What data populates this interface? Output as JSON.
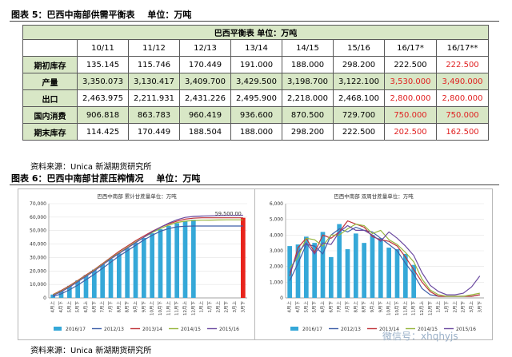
{
  "fig5": {
    "caption": "图表 5：巴西中南部供需平衡表",
    "unit": "单位：万吨",
    "table_title": "巴西平衡表  单位：万吨",
    "columns": [
      "",
      "10/11",
      "11/12",
      "12/13",
      "13/14",
      "14/15",
      "15/16",
      "16/17*",
      "16/17**"
    ],
    "rows": [
      {
        "label": "期初库存",
        "cells": [
          "135.145",
          "115.746",
          "170.449",
          "191.000",
          "188.000",
          "298.200",
          "222.500",
          "222.500"
        ],
        "red": [
          7
        ]
      },
      {
        "label": "产量",
        "cells": [
          "3,350.073",
          "3,130.417",
          "3,409.700",
          "3,429.500",
          "3,198.700",
          "3,122.100",
          "3,530.000",
          "3,490.000"
        ],
        "red": [
          6,
          7
        ]
      },
      {
        "label": "出口",
        "cells": [
          "2,463.975",
          "2,211.931",
          "2,431.226",
          "2,495.900",
          "2,218.000",
          "2,468.100",
          "2,800.000",
          "2,800.000"
        ],
        "red": [
          6,
          7
        ]
      },
      {
        "label": "国内消费",
        "cells": [
          "906.818",
          "863.783",
          "960.419",
          "936.600",
          "870.500",
          "729.700",
          "750.000",
          "750.000"
        ],
        "red": [
          6,
          7
        ]
      },
      {
        "label": "期末库存",
        "cells": [
          "114.425",
          "170.449",
          "188.504",
          "188.000",
          "298.200",
          "222.500",
          "202.500",
          "162.500"
        ],
        "red": [
          6,
          7
        ]
      }
    ],
    "source": "资料来源：Unica   新湖期货研究所"
  },
  "fig6": {
    "caption": "图表 6：巴西中南部甘蔗压榨情况",
    "unit": "单位：万吨",
    "source": "资料来源：Unica   新湖期货研究所"
  },
  "colors": {
    "bar": "#35a8d8",
    "s1213": "#3e5fa8",
    "s1314": "#c0343a",
    "s1415": "#96b63d",
    "s1516": "#6b4aa0",
    "highlight": "#e8241c"
  },
  "chart_data": [
    {
      "type": "bar",
      "title": "巴西中南部 累计甘蔗量单位：万吨",
      "categories": [
        "4月上",
        "4月下",
        "5月上",
        "5月下",
        "6月上",
        "6月下",
        "7月上",
        "7月下",
        "8月上",
        "8月下",
        "9月上",
        "9月下",
        "10月上",
        "10月下",
        "11月上",
        "11月下",
        "12月上",
        "12月下",
        "1月上",
        "1月下",
        "2月上",
        "2月下",
        "3月上",
        "3月下"
      ],
      "ylim": [
        0,
        70000
      ],
      "yticks": [
        "0",
        "10,000",
        "20,000",
        "30,000",
        "40,000",
        "50,000",
        "60,000",
        "70,000"
      ],
      "annotation": "59,500.00",
      "series": [
        {
          "name": "2016/17",
          "kind": "bar",
          "values": [
            2500,
            5500,
            9000,
            13000,
            17000,
            21000,
            25000,
            29000,
            33000,
            37000,
            41000,
            44500,
            48000,
            51000,
            53500,
            55500,
            57000,
            58000,
            null,
            null,
            null,
            null,
            null,
            59500
          ]
        },
        {
          "name": "2012/13",
          "kind": "line",
          "values": [
            1000,
            3000,
            6000,
            9500,
            13500,
            17500,
            22000,
            26500,
            31000,
            35000,
            39000,
            43000,
            46500,
            49500,
            51500,
            52800,
            53200,
            53400,
            53400,
            53400,
            53400,
            53400,
            53400,
            53400
          ]
        },
        {
          "name": "2013/14",
          "kind": "line",
          "values": [
            2500,
            5500,
            9000,
            13000,
            17000,
            21000,
            25500,
            30000,
            34500,
            38500,
            42500,
            46000,
            49500,
            52500,
            55000,
            57000,
            58500,
            59200,
            59500,
            59500,
            59500,
            59500,
            59500,
            59500
          ]
        },
        {
          "name": "2014/15",
          "kind": "line",
          "values": [
            2200,
            5000,
            8500,
            12500,
            16500,
            20500,
            25000,
            29500,
            33500,
            37500,
            41500,
            45000,
            48500,
            51500,
            54000,
            56000,
            57000,
            57500,
            57700,
            57800,
            57900,
            58000,
            58000,
            58000
          ]
        },
        {
          "name": "2015/16",
          "kind": "line",
          "values": [
            1800,
            4500,
            8000,
            12000,
            16000,
            20000,
            24500,
            29000,
            33000,
            37000,
            41000,
            45000,
            49000,
            52500,
            55500,
            58000,
            59800,
            60500,
            60800,
            61000,
            61200,
            61300,
            61300,
            61400
          ]
        }
      ],
      "legend": [
        "2016/17",
        "2012/13",
        "2013/14",
        "2014/15",
        "2015/16"
      ]
    },
    {
      "type": "bar",
      "title": "巴西中南部 双周甘蔗量单位：万吨",
      "categories": [
        "4月上",
        "4月下",
        "5月上",
        "5月下",
        "6月上",
        "6月下",
        "7月上",
        "7月下",
        "8月上",
        "8月下",
        "9月上",
        "9月下",
        "10月上",
        "10月下",
        "11月上",
        "11月下",
        "12月上",
        "12月下",
        "1月上",
        "1月下",
        "2月上",
        "2月下",
        "3月上",
        "3月下"
      ],
      "ylim": [
        0,
        6000
      ],
      "yticks": [
        "0",
        "1,000",
        "2,000",
        "3,000",
        "4,000",
        "5,000",
        "6,000"
      ],
      "series": [
        {
          "name": "2016/17",
          "kind": "bar",
          "values": [
            3300,
            3400,
            3900,
            3500,
            4200,
            2600,
            4700,
            3100,
            4100,
            3500,
            4000,
            3800,
            3200,
            3100,
            2800,
            2100,
            null,
            null,
            null,
            null,
            null,
            null,
            null,
            null
          ]
        },
        {
          "name": "2012/13",
          "kind": "line",
          "values": [
            1100,
            2200,
            3400,
            3300,
            2800,
            4000,
            4400,
            4200,
            4500,
            4300,
            4200,
            3800,
            3400,
            3000,
            2200,
            1500,
            600,
            200,
            100,
            100,
            100,
            100,
            100,
            200
          ]
        },
        {
          "name": "2013/14",
          "kind": "line",
          "values": [
            1400,
            3200,
            3800,
            2900,
            4000,
            3800,
            4200,
            4900,
            4700,
            4500,
            3900,
            3700,
            3600,
            3300,
            2600,
            1800,
            1000,
            400,
            100,
            100,
            100,
            100,
            100,
            200
          ]
        },
        {
          "name": "2014/15",
          "kind": "line",
          "values": [
            1900,
            2600,
            3800,
            3700,
            3300,
            4000,
            4000,
            4400,
            4700,
            4600,
            4100,
            4300,
            3700,
            3400,
            2900,
            2300,
            1200,
            500,
            200,
            100,
            100,
            100,
            200,
            300
          ]
        },
        {
          "name": "2015/16",
          "kind": "line",
          "values": [
            1600,
            2900,
            3500,
            2800,
            3500,
            3400,
            4200,
            4600,
            4300,
            4300,
            4000,
            3600,
            4200,
            3800,
            3300,
            2700,
            1600,
            800,
            400,
            200,
            200,
            300,
            700,
            1400
          ]
        }
      ],
      "legend": [
        "2016/17",
        "2012/13",
        "2013/14",
        "2014/15",
        "2015/16"
      ]
    }
  ],
  "watermark": "微信号：xhqhyjs"
}
